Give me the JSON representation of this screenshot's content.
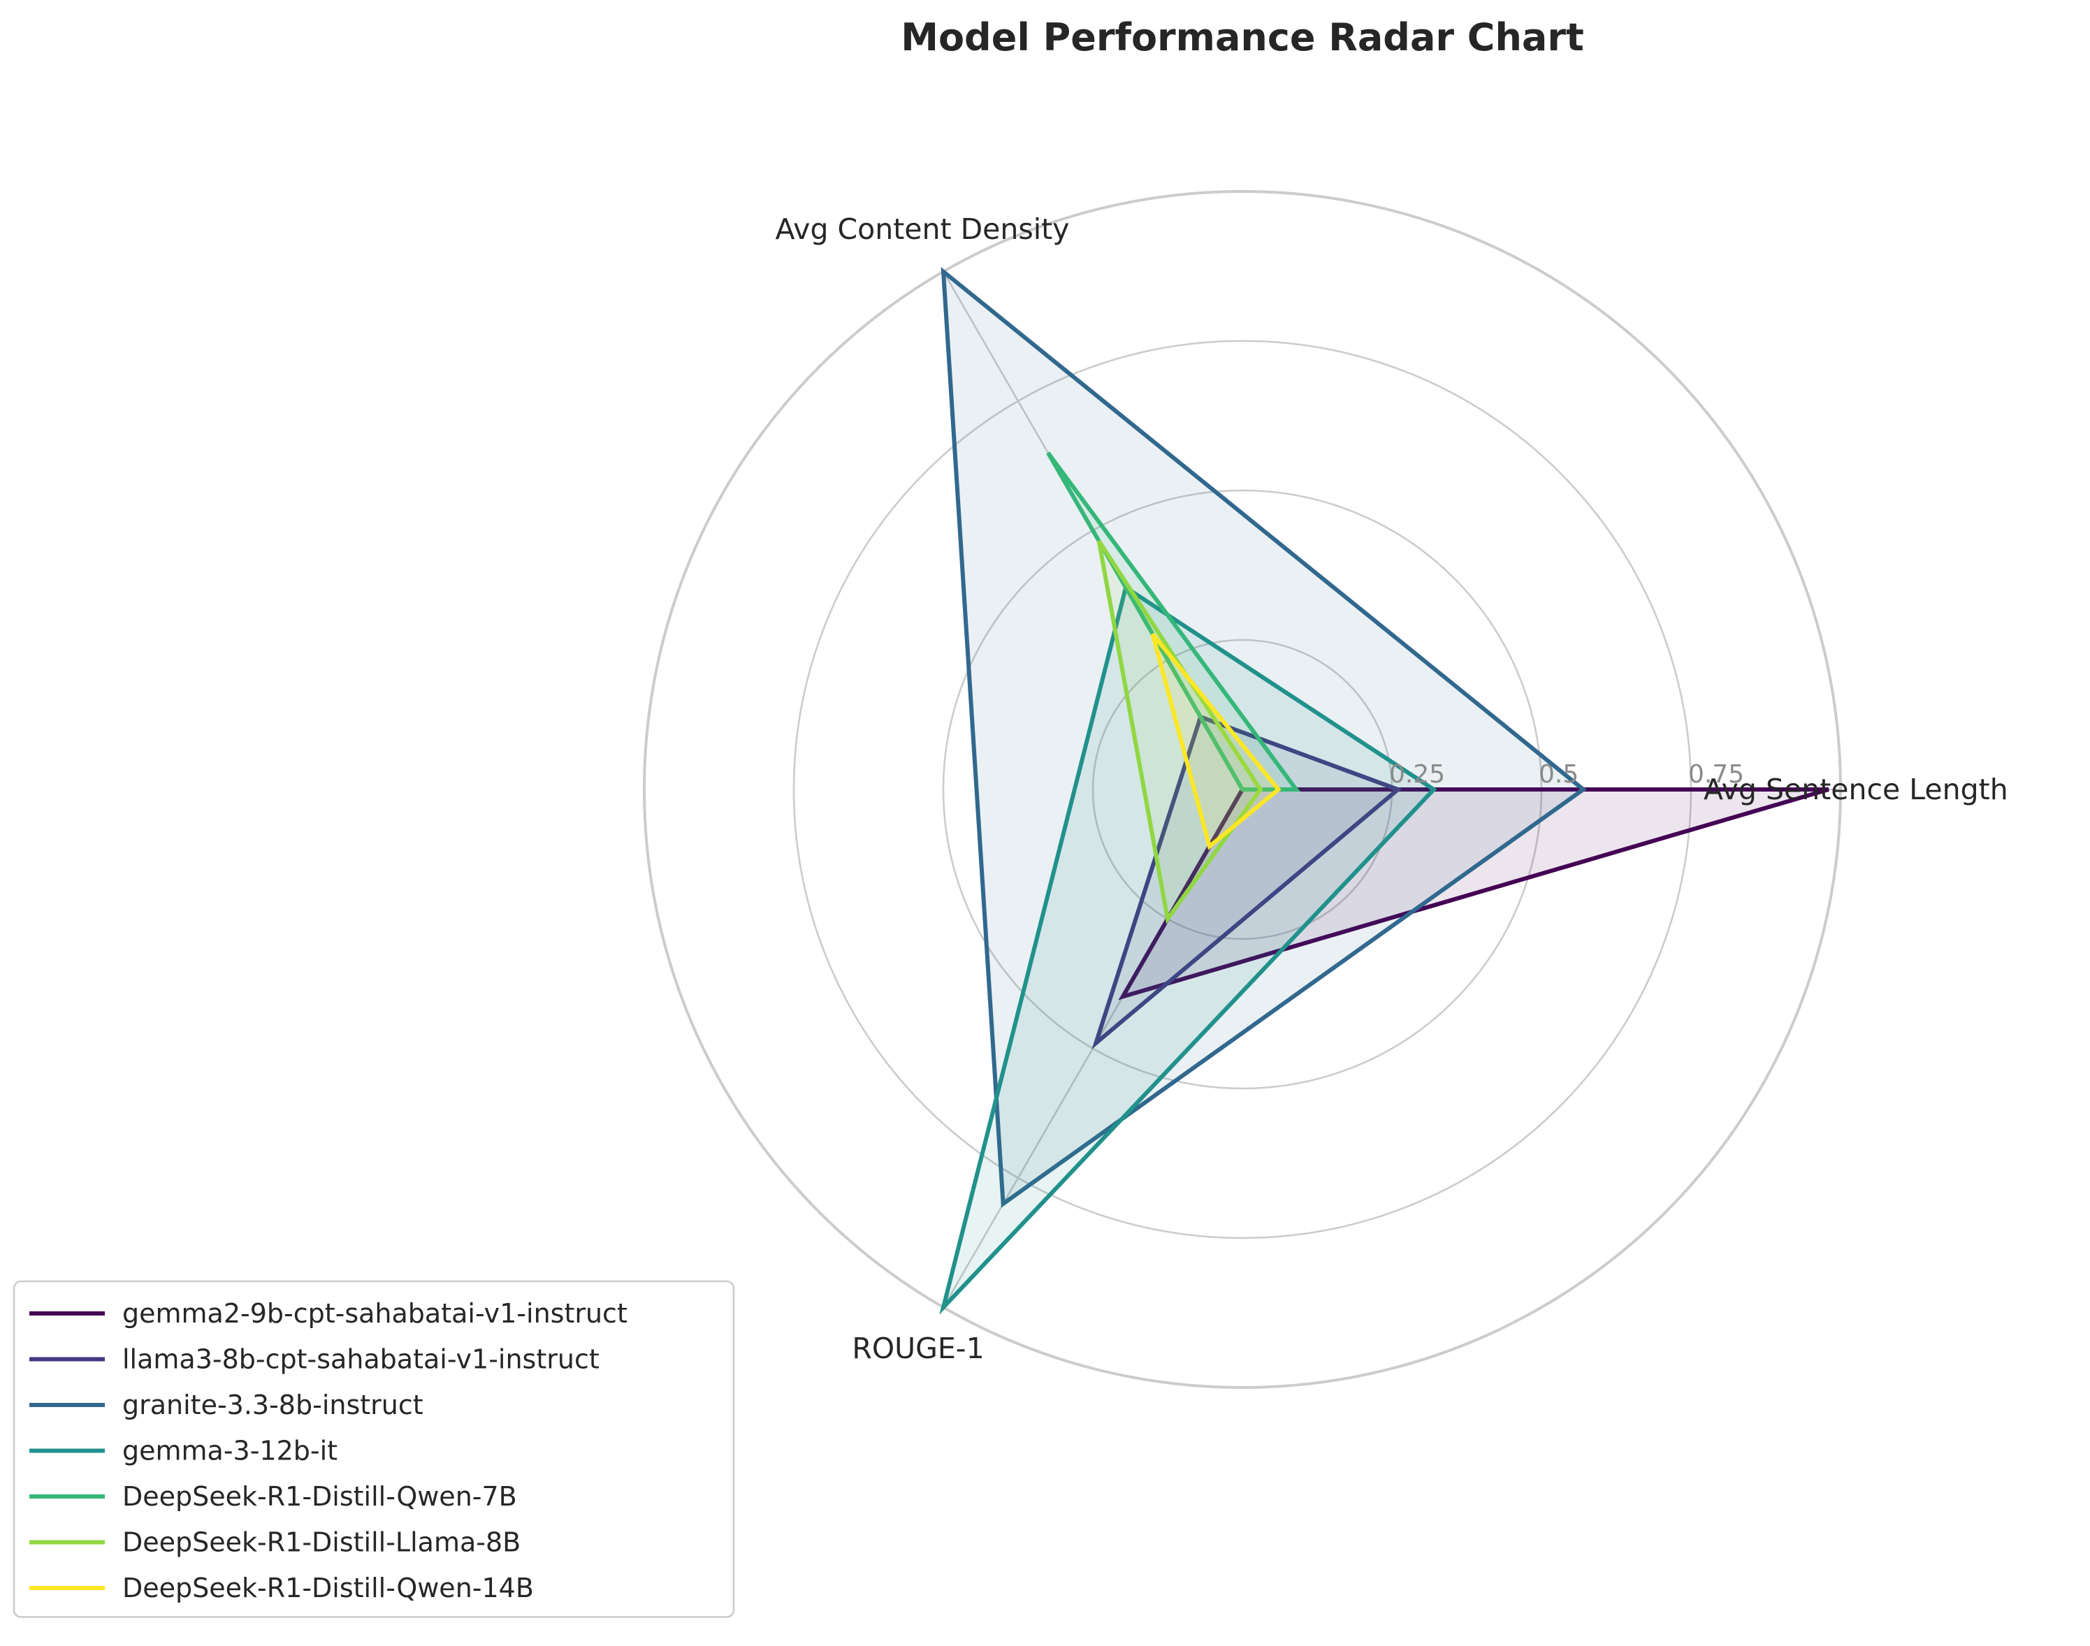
{
  "chart_data": {
    "type": "radar",
    "title": "Model Performance Radar Chart",
    "axes": [
      "Avg Sentence Length",
      "Avg Content Density",
      "ROUGE-1"
    ],
    "radial_ticks": [
      0.25,
      0.5,
      0.75
    ],
    "radial_tick_labels": [
      "0.25",
      "0.5",
      "0.75"
    ],
    "rlim": [
      0,
      1
    ],
    "grid": true,
    "legend_position": "lower-left",
    "series": [
      {
        "name": "gemma2-9b-cpt-sahabatai-v1-instruct",
        "color": "#440154",
        "values": [
          0.98,
          0.0,
          0.4
        ]
      },
      {
        "name": "llama3-8b-cpt-sahabatai-v1-instruct",
        "color": "#443983",
        "values": [
          0.26,
          0.14,
          0.49
        ]
      },
      {
        "name": "granite-3.3-8b-instruct",
        "color": "#31688e",
        "values": [
          0.57,
          1.0,
          0.8
        ]
      },
      {
        "name": "gemma-3-12b-it",
        "color": "#21918c",
        "values": [
          0.32,
          0.39,
          1.0
        ]
      },
      {
        "name": "DeepSeek-R1-Distill-Qwen-7B",
        "color": "#35b779",
        "values": [
          0.09,
          0.65,
          0.0
        ]
      },
      {
        "name": "DeepSeek-R1-Distill-Llama-8B",
        "color": "#90d743",
        "values": [
          0.03,
          0.48,
          0.25
        ]
      },
      {
        "name": "DeepSeek-R1-Distill-Qwen-14B",
        "color": "#fde725",
        "values": [
          0.06,
          0.3,
          0.11
        ]
      }
    ]
  }
}
